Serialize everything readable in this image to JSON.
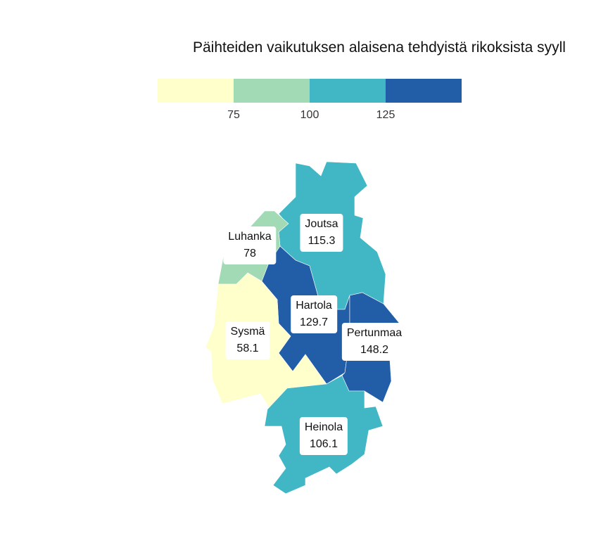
{
  "title": "Päihteiden vaikutuksen alaisena tehdyistä rikoksista syyll",
  "legend": {
    "colors": [
      "#ffffcc",
      "#a1dab4",
      "#41b6c4",
      "#225ea8"
    ],
    "ticks": [
      "75",
      "100",
      "125"
    ]
  },
  "regions": [
    {
      "name": "Joutsa",
      "value": "115.3",
      "color": "#41b6c4"
    },
    {
      "name": "Luhanka",
      "value": "78",
      "color": "#a1dab4"
    },
    {
      "name": "Hartola",
      "value": "129.7",
      "color": "#225ea8"
    },
    {
      "name": "Sysmä",
      "value": "58.1",
      "color": "#ffffcc"
    },
    {
      "name": "Pertunmaa",
      "value": "148.2",
      "color": "#225ea8"
    },
    {
      "name": "Heinola",
      "value": "106.1",
      "color": "#41b6c4"
    }
  ]
}
